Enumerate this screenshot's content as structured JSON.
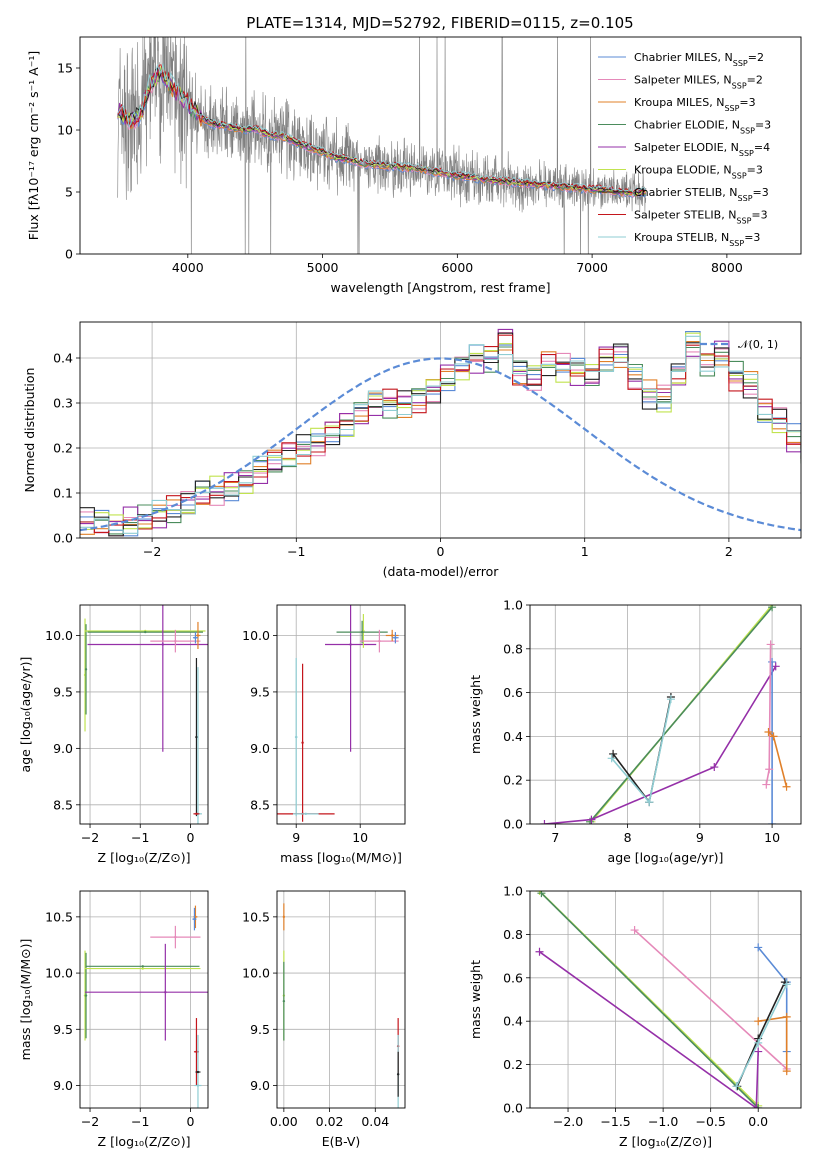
{
  "figure": {
    "title": "PLATE=1314, MJD=52792, FIBERID=0115, z=0.105"
  },
  "chart_data": [
    {
      "id": "spectrum",
      "type": "line",
      "xlabel": "wavelength [Angstrom, rest frame]",
      "ylabel": "Flux [fλ10⁻¹⁷ erg cm⁻² s⁻¹ A⁻¹]",
      "xlim": [
        3200,
        8550
      ],
      "ylim": [
        0,
        17.5
      ],
      "xticks": [
        4000,
        5000,
        6000,
        7000,
        8000
      ],
      "yticks": [
        0,
        5,
        10,
        15
      ],
      "observed_color": "#808080",
      "observed_range": [
        3480,
        7400
      ],
      "model_anchor_wavelengths": [
        3480,
        3560,
        3640,
        3720,
        3800,
        3900,
        4000,
        4100,
        4200,
        4300,
        4400,
        4500,
        4600,
        4700,
        4800,
        4900,
        5000,
        5100,
        5200,
        5300,
        5400,
        5500,
        5600,
        5700,
        5800,
        5900,
        6000,
        6100,
        6200,
        6300,
        6400,
        6500,
        6600,
        6700,
        6800,
        6900,
        7000,
        7100,
        7200,
        7300,
        7400
      ],
      "model_anchor_flux": [
        11.8,
        10.6,
        11.2,
        13.6,
        14.8,
        13.2,
        12.1,
        11.0,
        10.4,
        10.3,
        10.0,
        10.1,
        9.6,
        9.5,
        9.0,
        8.6,
        8.2,
        7.8,
        7.6,
        7.3,
        7.2,
        7.1,
        7.0,
        6.9,
        6.7,
        6.5,
        6.3,
        6.2,
        6.0,
        5.9,
        5.8,
        5.7,
        5.6,
        5.5,
        5.4,
        5.3,
        5.2,
        5.2,
        5.0,
        4.9,
        5.0
      ],
      "legend_location": "upper right",
      "legend_sub": "SSP",
      "series": [
        {
          "name": "Chabrier MILES, N",
          "nssp": "2",
          "color": "#5b8bd6"
        },
        {
          "name": "Salpeter MILES, N",
          "nssp": "2",
          "color": "#e589b9"
        },
        {
          "name": "Kroupa MILES, N",
          "nssp": "3",
          "color": "#e0802a"
        },
        {
          "name": "Chabrier ELODIE, N",
          "nssp": "3",
          "color": "#4b8c5c"
        },
        {
          "name": "Salpeter ELODIE, N",
          "nssp": "4",
          "color": "#9530a8"
        },
        {
          "name": "Kroupa ELODIE, N",
          "nssp": "3",
          "color": "#c1e34f"
        },
        {
          "name": "Chabrier STELIB, N",
          "nssp": "3",
          "color": "#222222"
        },
        {
          "name": "Salpeter STELIB, N",
          "nssp": "3",
          "color": "#c4161c"
        },
        {
          "name": "Kroupa STELIB, N",
          "nssp": "3",
          "color": "#8fcdd3"
        }
      ]
    },
    {
      "id": "residuals",
      "type": "histogram",
      "xlabel": "(data-model)/error",
      "ylabel": "Normed distribution",
      "xlim": [
        -2.5,
        2.5
      ],
      "ylim": [
        0,
        0.48
      ],
      "xticks": [
        -2,
        -1,
        0,
        1,
        2
      ],
      "yticks": [
        0.0,
        0.1,
        0.2,
        0.3,
        0.4
      ],
      "grid": true,
      "bin_width": 0.1,
      "bin_start": -2.5,
      "base_heights": [
        0.035,
        0.032,
        0.025,
        0.036,
        0.042,
        0.05,
        0.062,
        0.075,
        0.1,
        0.105,
        0.115,
        0.128,
        0.15,
        0.168,
        0.185,
        0.198,
        0.215,
        0.238,
        0.255,
        0.275,
        0.3,
        0.3,
        0.3,
        0.31,
        0.33,
        0.36,
        0.38,
        0.4,
        0.4,
        0.44,
        0.37,
        0.36,
        0.39,
        0.38,
        0.37,
        0.36,
        0.4,
        0.41,
        0.36,
        0.32,
        0.31,
        0.36,
        0.43,
        0.39,
        0.41,
        0.36,
        0.34,
        0.28,
        0.26,
        0.22,
        0.19,
        0.17,
        0.155,
        0.135,
        0.11,
        0.1,
        0.095,
        0.085,
        0.075,
        0.062,
        0.058,
        0.05,
        0.042,
        0.048,
        0.032,
        0.03,
        0.028,
        0.022,
        0.02,
        0.018
      ],
      "gaussian": {
        "mean": 0,
        "sigma": 1,
        "color": "#5b8bd6",
        "label": "𝒩(0, 1)"
      }
    },
    {
      "id": "age-vs-Z",
      "type": "errorbar",
      "xlabel": "Z [log₁₀(Z/Z⊙)]",
      "ylabel": "age  [log₁₀(age/yr)]",
      "xlim": [
        -2.2,
        0.35
      ],
      "ylim": [
        8.33,
        10.27
      ],
      "xticks": [
        -2,
        -1,
        0
      ],
      "yticks": [
        8.5,
        9.0,
        9.5,
        10.0
      ],
      "grid": true,
      "points": [
        {
          "series": 5,
          "x": -2.1,
          "y": 9.65,
          "xerr": 0,
          "yerr": 0.5
        },
        {
          "series": 3,
          "x": -2.08,
          "y": 9.7,
          "xerr": 0,
          "yerr": 0.4
        },
        {
          "series": 5,
          "x": -0.9,
          "y": 10.04,
          "xerr": 1.2,
          "yerr": 0
        },
        {
          "series": 3,
          "x": -0.9,
          "y": 10.03,
          "xerr": 1.15,
          "yerr": 0
        },
        {
          "series": 4,
          "x": -0.55,
          "y": 9.92,
          "xerr": 1.5,
          "yerr": 0.95
        },
        {
          "series": 1,
          "x": -0.3,
          "y": 9.95,
          "xerr": 0.5,
          "yerr": 0.1
        },
        {
          "series": 2,
          "x": 0.15,
          "y": 10.0,
          "xerr": 0.05,
          "yerr": 0.12
        },
        {
          "series": 0,
          "x": 0.1,
          "y": 9.98,
          "xerr": 0.05,
          "yerr": 0.05
        },
        {
          "series": 6,
          "x": 0.12,
          "y": 9.1,
          "xerr": 0.02,
          "yerr": 0.7
        },
        {
          "series": 8,
          "x": 0.15,
          "y": 8.42,
          "xerr": 0.08,
          "yerr": 1.3
        },
        {
          "series": 7,
          "x": 0.12,
          "y": 8.42,
          "xerr": 0.06,
          "yerr": 0
        }
      ]
    },
    {
      "id": "age-vs-mass",
      "type": "errorbar",
      "xlabel": "mass [log₁₀(M/M⊙)]",
      "ylabel": "",
      "xlim": [
        8.7,
        10.7
      ],
      "ylim": [
        8.33,
        10.27
      ],
      "xticks": [
        9,
        10
      ],
      "yticks": [
        8.5,
        9.0,
        9.5,
        10.0
      ],
      "grid": true,
      "points": [
        {
          "series": 8,
          "x": 9.0,
          "y": 9.1,
          "xerr": 0.02,
          "yerr": 0.7
        },
        {
          "series": 7,
          "x": 9.1,
          "y": 8.42,
          "xerr": 0.5,
          "yerr": 0
        },
        {
          "series": 7,
          "x": 9.1,
          "y": 9.05,
          "xerr": 0,
          "yerr": 0.7
        },
        {
          "series": 8,
          "x": 9.15,
          "y": 8.42,
          "xerr": 0.2,
          "yerr": 0
        },
        {
          "series": 4,
          "x": 9.85,
          "y": 9.92,
          "xerr": 0.4,
          "yerr": 0.95
        },
        {
          "series": 5,
          "x": 10.05,
          "y": 10.04,
          "xerr": 0.0,
          "yerr": 0.15
        },
        {
          "series": 3,
          "x": 10.03,
          "y": 10.03,
          "xerr": 0.4,
          "yerr": 0.1
        },
        {
          "series": 1,
          "x": 10.3,
          "y": 9.95,
          "xerr": 0.3,
          "yerr": 0.1
        },
        {
          "series": 2,
          "x": 10.5,
          "y": 10.0,
          "xerr": 0.1,
          "yerr": 0.05
        },
        {
          "series": 0,
          "x": 10.55,
          "y": 9.98,
          "xerr": 0.05,
          "yerr": 0.05
        }
      ]
    },
    {
      "id": "massweight-vs-age",
      "type": "line",
      "xlabel": "age  [log₁₀(age/yr)]",
      "ylabel": "mass weight",
      "xlim": [
        6.65,
        10.4
      ],
      "ylim": [
        0,
        1.0
      ],
      "xticks": [
        7,
        8,
        9,
        10
      ],
      "yticks": [
        0.0,
        0.2,
        0.4,
        0.6,
        0.8,
        1.0
      ],
      "grid": true,
      "series": [
        {
          "series": 5,
          "x": [
            7.5,
            10.0
          ],
          "y": [
            0.01,
            1.0
          ]
        },
        {
          "series": 3,
          "x": [
            7.48,
            10.0
          ],
          "y": [
            0.01,
            0.99
          ]
        },
        {
          "series": 4,
          "x": [
            6.85,
            7.5,
            9.2,
            10.05
          ],
          "y": [
            0.0,
            0.02,
            0.26,
            0.72
          ]
        },
        {
          "series": 6,
          "x": [
            7.8,
            8.3,
            8.6
          ],
          "y": [
            0.32,
            0.1,
            0.58
          ]
        },
        {
          "series": 8,
          "x": [
            7.78,
            8.3,
            8.6
          ],
          "y": [
            0.3,
            0.1,
            0.57
          ]
        },
        {
          "series": 0,
          "x": [
            10.0,
            10.0
          ],
          "y": [
            0.0,
            0.74
          ]
        },
        {
          "series": 1,
          "x": [
            9.92,
            9.96,
            9.98
          ],
          "y": [
            0.18,
            0.25,
            0.82
          ]
        },
        {
          "series": 2,
          "x": [
            9.95,
            10.02,
            10.2
          ],
          "y": [
            0.42,
            0.4,
            0.17
          ]
        }
      ]
    },
    {
      "id": "mass-vs-Z",
      "type": "errorbar",
      "xlabel": "Z [log₁₀(Z/Z⊙)]",
      "ylabel": "mass [log₁₀(M/M⊙)]",
      "xlim": [
        -2.2,
        0.35
      ],
      "ylim": [
        8.8,
        10.73
      ],
      "xticks": [
        -2,
        -1,
        0
      ],
      "yticks": [
        9.0,
        9.5,
        10.0,
        10.5
      ],
      "grid": true,
      "points": [
        {
          "series": 5,
          "x": -2.1,
          "y": 9.8,
          "xerr": 0,
          "yerr": 0.4
        },
        {
          "series": 3,
          "x": -2.08,
          "y": 9.8,
          "xerr": 0,
          "yerr": 0.38
        },
        {
          "series": 5,
          "x": -0.95,
          "y": 10.04,
          "xerr": 1.15,
          "yerr": 0
        },
        {
          "series": 3,
          "x": -0.95,
          "y": 10.06,
          "xerr": 1.13,
          "yerr": 0
        },
        {
          "series": 4,
          "x": -0.5,
          "y": 9.83,
          "xerr": 1.6,
          "yerr": 0.43
        },
        {
          "series": 1,
          "x": -0.3,
          "y": 10.32,
          "xerr": 0.5,
          "yerr": 0.1
        },
        {
          "series": 2,
          "x": 0.1,
          "y": 10.5,
          "xerr": 0.04,
          "yerr": 0.1
        },
        {
          "series": 0,
          "x": 0.08,
          "y": 10.48,
          "xerr": 0.04,
          "yerr": 0.1
        },
        {
          "series": 7,
          "x": 0.12,
          "y": 9.3,
          "xerr": 0.05,
          "yerr": 0.3
        },
        {
          "series": 8,
          "x": 0.15,
          "y": 9.0,
          "xerr": 0.07,
          "yerr": 0.45
        },
        {
          "series": 6,
          "x": 0.15,
          "y": 9.12,
          "xerr": 0.05,
          "yerr": 0
        }
      ]
    },
    {
      "id": "mass-vs-EBV",
      "type": "errorbar",
      "xlabel": "E(B-V)",
      "ylabel": "",
      "xlim": [
        -0.003,
        0.053
      ],
      "ylim": [
        8.8,
        10.73
      ],
      "xticks": [
        0.0,
        0.02,
        0.04
      ],
      "yticks": [
        9.0,
        9.5,
        10.0,
        10.5
      ],
      "grid": true,
      "points": [
        {
          "series": 2,
          "x": 0.0,
          "y": 10.5,
          "xerr": 0,
          "yerr": 0.12
        },
        {
          "series": 5,
          "x": 0.0,
          "y": 9.8,
          "xerr": 0,
          "yerr": 0.4
        },
        {
          "series": 3,
          "x": 0.0,
          "y": 9.75,
          "xerr": 0,
          "yerr": 0.35
        },
        {
          "series": 7,
          "x": 0.05,
          "y": 9.35,
          "xerr": 0,
          "yerr": 0.25
        },
        {
          "series": 8,
          "x": 0.05,
          "y": 9.1,
          "xerr": 0,
          "yerr": 0.35
        },
        {
          "series": 6,
          "x": 0.05,
          "y": 9.1,
          "xerr": 0,
          "yerr": 0.2
        }
      ]
    },
    {
      "id": "massweight-vs-Z",
      "type": "line",
      "xlabel": "Z [log₁₀(Z/Z⊙)]",
      "ylabel": "mass weight",
      "xlim": [
        -2.4,
        0.45
      ],
      "ylim": [
        0,
        1.0
      ],
      "xticks": [
        -2.0,
        -1.5,
        -1.0,
        -0.5,
        0.0
      ],
      "tick_labels": [
        "−2.0",
        "−1.5",
        "−1.0",
        "−0.5",
        "0.0"
      ],
      "yticks": [
        0.0,
        0.2,
        0.4,
        0.6,
        0.8,
        1.0
      ],
      "grid": true,
      "series": [
        {
          "series": 5,
          "x": [
            -2.3,
            0.0
          ],
          "y": [
            1.0,
            0.01
          ]
        },
        {
          "series": 3,
          "x": [
            -2.28,
            0.0
          ],
          "y": [
            0.99,
            0.0
          ]
        },
        {
          "series": 4,
          "x": [
            -2.3,
            -0.02,
            0.0
          ],
          "y": [
            0.72,
            0.0,
            0.26
          ]
        },
        {
          "series": 1,
          "x": [
            -1.3,
            0.3
          ],
          "y": [
            0.82,
            0.18
          ]
        },
        {
          "series": 0,
          "x": [
            0.0,
            0.3,
            0.3
          ],
          "y": [
            0.74,
            0.58,
            0.26
          ]
        },
        {
          "series": 2,
          "x": [
            0.0,
            0.3,
            0.3
          ],
          "y": [
            0.4,
            0.42,
            0.17
          ]
        },
        {
          "series": 6,
          "x": [
            -0.22,
            0.0,
            0.28
          ],
          "y": [
            0.1,
            0.32,
            0.58
          ]
        },
        {
          "series": 8,
          "x": [
            -0.23,
            0.0,
            0.3
          ],
          "y": [
            0.1,
            0.3,
            0.57
          ]
        }
      ]
    }
  ]
}
